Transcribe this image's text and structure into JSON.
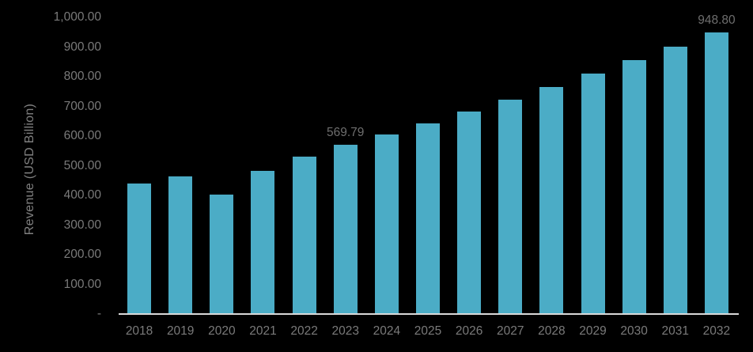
{
  "chart_data": {
    "type": "bar",
    "title": "",
    "xlabel": "",
    "ylabel": "Revenue (USD Billion)",
    "categories": [
      "2018",
      "2019",
      "2020",
      "2021",
      "2022",
      "2023",
      "2024",
      "2025",
      "2026",
      "2027",
      "2028",
      "2029",
      "2030",
      "2031",
      "2032"
    ],
    "values": [
      440,
      464,
      402,
      484,
      531,
      569.79,
      605,
      643,
      682,
      723,
      766,
      812,
      856,
      901,
      948.8
    ],
    "point_labels": {
      "2023": "569.79",
      "2032": "948.80"
    },
    "ylim": [
      0,
      1000
    ],
    "y_ticks": [
      {
        "value": 0,
        "label": "-"
      },
      {
        "value": 100,
        "label": "100.00"
      },
      {
        "value": 200,
        "label": "200.00"
      },
      {
        "value": 300,
        "label": "300.00"
      },
      {
        "value": 400,
        "label": "400.00"
      },
      {
        "value": 500,
        "label": "500.00"
      },
      {
        "value": 600,
        "label": "600.00"
      },
      {
        "value": 700,
        "label": "700.00"
      },
      {
        "value": 800,
        "label": "800.00"
      },
      {
        "value": 900,
        "label": "900.00"
      },
      {
        "value": 1000,
        "label": "1,000.00"
      }
    ],
    "grid": false,
    "legend": false,
    "colors": {
      "background": "#000000",
      "bar": "#4BACC6",
      "axis_line": "#D9D9D9",
      "tick_text": "#7A7A7A",
      "data_label_text": "#6E6E6E",
      "axis_title_text": "#808080"
    }
  }
}
